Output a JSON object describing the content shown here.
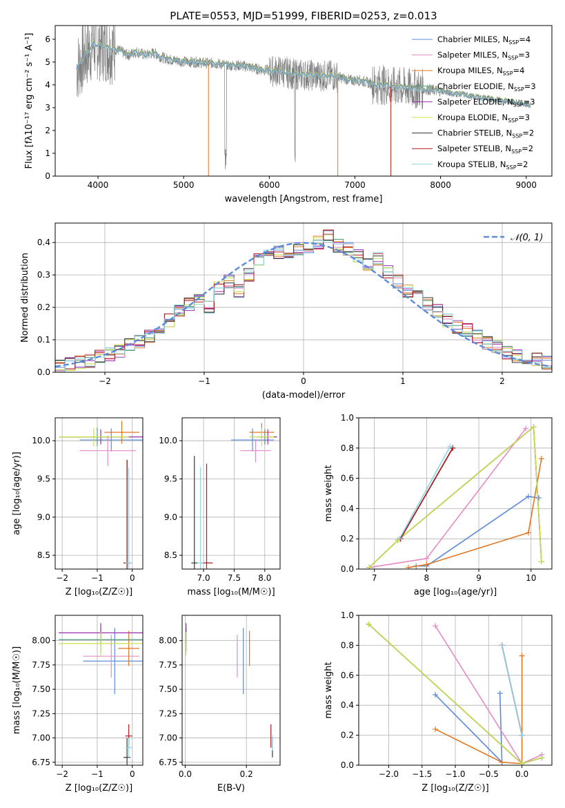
{
  "figure": {
    "title": "PLATE=0553, MJD=51999, FIBERID=0253, z=0.013"
  },
  "colors": {
    "chabrier_miles": "#5b8bd8",
    "salpeter_miles": "#e58ac4",
    "kroupa_miles": "#e0761f",
    "chabrier_elodie": "#4e9d78",
    "salpeter_elodie": "#9b2fb0",
    "kroupa_elodie": "#c9e04a",
    "chabrier_stelib": "#333333",
    "salpeter_stelib": "#b0181c",
    "kroupa_stelib": "#8fd3e2",
    "gaussian": "#5b8bd8",
    "data": "#808080"
  },
  "chart_data": [
    {
      "id": "spectrum",
      "type": "line",
      "title": "PLATE=0553, MJD=51999, FIBERID=0253, z=0.013",
      "xlabel": "wavelength [Angstrom, rest frame]",
      "ylabel": "Flux [fλ10⁻¹⁷ erg cm⁻² s⁻¹ A⁻¹]",
      "xlim": [
        3500,
        9300
      ],
      "ylim": [
        0,
        6.6
      ],
      "xticks": [
        4000,
        5000,
        6000,
        7000,
        8000,
        9000
      ],
      "yticks": [
        0,
        1,
        2,
        3,
        4,
        5,
        6
      ],
      "grid": false,
      "legend_position": "top-right",
      "model_x": [
        3750,
        3850,
        3950,
        4050,
        4150,
        4250,
        4350,
        4450,
        4550,
        4650,
        4750,
        4850,
        4950,
        5050,
        5150,
        5250,
        5350,
        5450,
        5550,
        5650,
        5750,
        5850,
        5950,
        6050,
        6150,
        6250,
        6350,
        6450,
        6550,
        6650,
        6750,
        6850,
        6950,
        7050,
        7150,
        7250,
        7350,
        7450,
        7550,
        7650,
        7750,
        7850,
        7950,
        8050,
        8150,
        8250,
        8350,
        8450,
        8550,
        8650,
        8750,
        8850,
        8950,
        9050
      ],
      "model_y": [
        4.7,
        5.3,
        5.8,
        5.7,
        5.6,
        5.5,
        5.3,
        5.45,
        5.3,
        5.4,
        5.2,
        5.1,
        5.05,
        5.0,
        5.0,
        4.95,
        4.95,
        4.9,
        4.85,
        4.85,
        4.8,
        4.7,
        4.65,
        4.6,
        4.6,
        4.5,
        4.45,
        4.45,
        4.4,
        4.4,
        4.4,
        4.3,
        4.2,
        4.2,
        4.1,
        4.0,
        4.0,
        3.9,
        3.9,
        3.85,
        3.8,
        3.8,
        3.75,
        3.7,
        3.6,
        3.6,
        3.5,
        3.45,
        3.4,
        3.35,
        3.3,
        3.25,
        3.2,
        3.1
      ],
      "series": [
        {
          "name": "Chabrier MILES, N",
          "sub": "SSP",
          "suffix": "=4",
          "key": "chabrier_miles"
        },
        {
          "name": "Salpeter MILES, N",
          "sub": "SSP",
          "suffix": "=3",
          "key": "salpeter_miles"
        },
        {
          "name": "Kroupa MILES, N",
          "sub": "SSP",
          "suffix": "=4",
          "key": "kroupa_miles"
        },
        {
          "name": "Chabrier ELODIE, N",
          "sub": "SSP",
          "suffix": "=3",
          "key": "chabrier_elodie"
        },
        {
          "name": "Salpeter ELODIE, N",
          "sub": "SSP",
          "suffix": "=3",
          "key": "salpeter_elodie"
        },
        {
          "name": "Kroupa ELODIE, N",
          "sub": "SSP",
          "suffix": "=3",
          "key": "kroupa_elodie"
        },
        {
          "name": "Chabrier STELIB, N",
          "sub": "SSP",
          "suffix": "=2",
          "key": "chabrier_stelib"
        },
        {
          "name": "Salpeter STELIB, N",
          "sub": "SSP",
          "suffix": "=2",
          "key": "salpeter_stelib"
        },
        {
          "name": "Kroupa STELIB, N",
          "sub": "SSP",
          "suffix": "=2",
          "key": "kroupa_stelib"
        }
      ]
    },
    {
      "id": "residuals",
      "type": "line",
      "xlabel": "(data-model)/error",
      "ylabel": "Normed distribution",
      "xlim": [
        -2.5,
        2.5
      ],
      "ylim": [
        0,
        0.46
      ],
      "xticks": [
        -2,
        -1,
        0,
        1,
        2
      ],
      "yticks": [
        0.0,
        0.1,
        0.2,
        0.3,
        0.4
      ],
      "grid": true,
      "legend": "𝒩(0, 1)",
      "legend_position": "top-right",
      "bins": [
        -2.5,
        -2.4,
        -2.3,
        -2.2,
        -2.1,
        -2.0,
        -1.9,
        -1.8,
        -1.7,
        -1.6,
        -1.5,
        -1.4,
        -1.3,
        -1.2,
        -1.1,
        -1.0,
        -0.9,
        -0.8,
        -0.7,
        -0.6,
        -0.5,
        -0.4,
        -0.3,
        -0.2,
        -0.1,
        0.0,
        0.1,
        0.2,
        0.3,
        0.4,
        0.5,
        0.6,
        0.7,
        0.8,
        0.9,
        1.0,
        1.1,
        1.2,
        1.3,
        1.4,
        1.5,
        1.6,
        1.7,
        1.8,
        1.9,
        2.0,
        2.1,
        2.2,
        2.3,
        2.4
      ],
      "hist_values": [
        0.02,
        0.025,
        0.03,
        0.035,
        0.05,
        0.055,
        0.065,
        0.085,
        0.095,
        0.11,
        0.14,
        0.16,
        0.19,
        0.21,
        0.22,
        0.2,
        0.26,
        0.28,
        0.25,
        0.3,
        0.35,
        0.38,
        0.37,
        0.36,
        0.38,
        0.36,
        0.4,
        0.42,
        0.39,
        0.38,
        0.36,
        0.33,
        0.35,
        0.31,
        0.28,
        0.25,
        0.24,
        0.21,
        0.19,
        0.16,
        0.14,
        0.13,
        0.11,
        0.09,
        0.08,
        0.06,
        0.05,
        0.04,
        0.04,
        0.03
      ]
    },
    {
      "id": "age_vs_Z",
      "type": "scatter",
      "xlabel": "Z [log₁₀(Z/Z☉)]",
      "ylabel": "age  [log₁₀(age/yr)]",
      "xlim": [
        -2.2,
        0.3
      ],
      "ylim": [
        8.32,
        10.3
      ],
      "xticks": [
        -2,
        -1,
        0
      ],
      "yticks": [
        8.5,
        9.0,
        9.5,
        10.0
      ],
      "grid": true,
      "points": [
        {
          "key": "chabrier_miles",
          "x": -0.6,
          "y": 10.01,
          "xerr": 0.9,
          "yerr": 0.15
        },
        {
          "key": "salpeter_miles",
          "x": -0.7,
          "y": 9.87,
          "xerr": 0.8,
          "yerr": 0.2
        },
        {
          "key": "kroupa_miles",
          "x": -0.3,
          "y": 10.11,
          "xerr": 0.5,
          "yerr": 0.15
        },
        {
          "key": "chabrier_elodie",
          "x": -1.0,
          "y": 10.05,
          "xerr": 1.0,
          "yerr": 0.12
        },
        {
          "key": "salpeter_elodie",
          "x": -0.9,
          "y": 10.05,
          "xerr": 1.2,
          "yerr": 0.1
        },
        {
          "key": "kroupa_elodie",
          "x": -1.1,
          "y": 10.05,
          "xerr": 1.0,
          "yerr": 0.12
        },
        {
          "key": "chabrier_stelib",
          "x": -0.15,
          "y": 8.4,
          "xerr": 0.1,
          "yerr": 1.35
        },
        {
          "key": "salpeter_stelib",
          "x": -0.15,
          "y": 8.4,
          "xerr": 0.1,
          "yerr": 1.35
        },
        {
          "key": "kroupa_stelib",
          "x": -0.1,
          "y": 8.4,
          "xerr": 0.1,
          "yerr": 1.25
        }
      ]
    },
    {
      "id": "age_vs_mass",
      "type": "scatter",
      "xlabel": "mass [log₁₀(M/M☉)]",
      "ylabel": "",
      "xlim": [
        6.65,
        8.25
      ],
      "ylim": [
        8.32,
        10.3
      ],
      "xticks": [
        7.0,
        7.5,
        8.0
      ],
      "yticks": [
        8.5,
        9.0,
        9.5,
        10.0
      ],
      "grid": true,
      "points": [
        {
          "key": "chabrier_miles",
          "x": 7.8,
          "y": 10.01,
          "xerr": 0.35,
          "yerr": 0.15
        },
        {
          "key": "salpeter_miles",
          "x": 7.85,
          "y": 9.87,
          "xerr": 0.25,
          "yerr": 0.15
        },
        {
          "key": "kroupa_miles",
          "x": 7.95,
          "y": 10.11,
          "xerr": 0.2,
          "yerr": 0.12
        },
        {
          "key": "chabrier_elodie",
          "x": 8.0,
          "y": 10.05,
          "xerr": 0.15,
          "yerr": 0.1
        },
        {
          "key": "salpeter_elodie",
          "x": 8.05,
          "y": 10.05,
          "xerr": 0.15,
          "yerr": 0.1
        },
        {
          "key": "kroupa_elodie",
          "x": 7.95,
          "y": 10.05,
          "xerr": 0.2,
          "yerr": 0.12
        },
        {
          "key": "chabrier_stelib",
          "x": 6.85,
          "y": 8.4,
          "xerr": 0.05,
          "yerr": 1.4
        },
        {
          "key": "salpeter_stelib",
          "x": 7.05,
          "y": 8.4,
          "xerr": 0.1,
          "yerr": 1.3
        },
        {
          "key": "kroupa_stelib",
          "x": 6.95,
          "y": 8.4,
          "xerr": 0.05,
          "yerr": 1.25
        }
      ]
    },
    {
      "id": "weight_vs_age",
      "type": "line",
      "xlabel": "age  [log₁₀(age/yr)]",
      "ylabel": "mass weight",
      "xlim": [
        6.7,
        10.4
      ],
      "ylim": [
        0,
        1.0
      ],
      "xticks": [
        7,
        8,
        9,
        10
      ],
      "yticks": [
        0.0,
        0.2,
        0.4,
        0.6,
        0.8,
        1.0
      ],
      "grid": true,
      "lines": [
        {
          "key": "chabrier_miles",
          "x": [
            7.8,
            8.0,
            9.95,
            10.15
          ],
          "y": [
            0.02,
            0.02,
            0.48,
            0.47
          ]
        },
        {
          "key": "salpeter_miles",
          "x": [
            6.9,
            8.0,
            9.9
          ],
          "y": [
            0.01,
            0.07,
            0.93
          ]
        },
        {
          "key": "kroupa_miles",
          "x": [
            7.65,
            8.0,
            9.95,
            10.2
          ],
          "y": [
            0.01,
            0.03,
            0.24,
            0.73
          ]
        },
        {
          "key": "chabrier_elodie",
          "x": [
            6.9,
            7.45,
            10.05,
            10.2
          ],
          "y": [
            0.01,
            0.19,
            0.94,
            0.05
          ]
        },
        {
          "key": "salpeter_elodie",
          "x": [
            6.9,
            7.45,
            10.05,
            10.2
          ],
          "y": [
            0.01,
            0.19,
            0.94,
            0.05
          ]
        },
        {
          "key": "kroupa_elodie",
          "x": [
            6.9,
            7.45,
            10.05,
            10.2
          ],
          "y": [
            0.01,
            0.19,
            0.94,
            0.05
          ]
        },
        {
          "key": "chabrier_stelib",
          "x": [
            7.5,
            8.5
          ],
          "y": [
            0.2,
            0.8
          ]
        },
        {
          "key": "salpeter_stelib",
          "x": [
            7.5,
            8.5
          ],
          "y": [
            0.2,
            0.8
          ]
        },
        {
          "key": "kroupa_stelib",
          "x": [
            7.48,
            8.45
          ],
          "y": [
            0.2,
            0.81
          ]
        }
      ]
    },
    {
      "id": "mass_vs_Z",
      "type": "scatter",
      "xlabel": "Z [log₁₀(Z/Z☉)]",
      "ylabel": "mass [log₁₀(M/M☉)]",
      "xlim": [
        -2.2,
        0.3
      ],
      "ylim": [
        6.72,
        8.26
      ],
      "xticks": [
        -2,
        -1,
        0
      ],
      "yticks": [
        6.75,
        7.0,
        7.25,
        7.5,
        7.75,
        8.0
      ],
      "grid": true,
      "points": [
        {
          "key": "chabrier_miles",
          "x": -0.5,
          "y": 7.79,
          "xerr": 0.9,
          "yerr": 0.34
        },
        {
          "key": "salpeter_miles",
          "x": -0.6,
          "y": 7.84,
          "xerr": 0.8,
          "yerr": 0.22
        },
        {
          "key": "kroupa_miles",
          "x": -0.1,
          "y": 7.92,
          "xerr": 0.3,
          "yerr": 0.18
        },
        {
          "key": "chabrier_elodie",
          "x": -0.9,
          "y": 8.01,
          "xerr": 1.2,
          "yerr": 0.12
        },
        {
          "key": "salpeter_elodie",
          "x": -0.9,
          "y": 8.08,
          "xerr": 1.2,
          "yerr": 0.1
        },
        {
          "key": "kroupa_elodie",
          "x": -0.9,
          "y": 7.97,
          "xerr": 1.2,
          "yerr": 0.12
        },
        {
          "key": "chabrier_stelib",
          "x": -0.15,
          "y": 6.8,
          "xerr": 0.1,
          "yerr": 0.2
        },
        {
          "key": "salpeter_stelib",
          "x": -0.1,
          "y": 7.02,
          "xerr": 0.1,
          "yerr": 0.12
        },
        {
          "key": "kroupa_stelib",
          "x": -0.1,
          "y": 6.9,
          "xerr": 0.1,
          "yerr": 0.1
        }
      ]
    },
    {
      "id": "mass_vs_ebv",
      "type": "scatter",
      "xlabel": "E(B-V)",
      "ylabel": "",
      "xlim": [
        -0.01,
        0.31
      ],
      "ylim": [
        6.72,
        8.26
      ],
      "xticks": [
        0.0,
        0.2
      ],
      "yticks": [
        6.75,
        7.0,
        7.25,
        7.5,
        7.75,
        8.0
      ],
      "grid": true,
      "points": [
        {
          "key": "chabrier_miles",
          "x": 0.19,
          "y": 7.79,
          "xerr": 0,
          "yerr": 0.34
        },
        {
          "key": "salpeter_miles",
          "x": 0.17,
          "y": 7.84,
          "xerr": 0,
          "yerr": 0.22
        },
        {
          "key": "kroupa_miles",
          "x": 0.21,
          "y": 7.92,
          "xerr": 0,
          "yerr": 0.18
        },
        {
          "key": "chabrier_elodie",
          "x": 0.003,
          "y": 8.01,
          "xerr": 0,
          "yerr": 0.12
        },
        {
          "key": "salpeter_elodie",
          "x": 0.003,
          "y": 8.08,
          "xerr": 0,
          "yerr": 0.1
        },
        {
          "key": "kroupa_elodie",
          "x": 0.003,
          "y": 7.97,
          "xerr": 0,
          "yerr": 0.12
        },
        {
          "key": "chabrier_stelib",
          "x": 0.285,
          "y": 6.9,
          "xerr": 0,
          "yerr": 0.1
        },
        {
          "key": "salpeter_stelib",
          "x": 0.28,
          "y": 7.02,
          "xerr": 0,
          "yerr": 0.12
        },
        {
          "key": "kroupa_stelib",
          "x": 0.285,
          "y": 6.95,
          "xerr": 0,
          "yerr": 0.08
        }
      ]
    },
    {
      "id": "weight_vs_Z",
      "type": "line",
      "xlabel": "Z [log₁₀(Z/Z☉)]",
      "ylabel": "mass weight",
      "xlim": [
        -2.45,
        0.45
      ],
      "ylim": [
        0,
        1.0
      ],
      "xticks": [
        -2.0,
        -1.5,
        -1.0,
        -0.5,
        0.0
      ],
      "yticks": [
        0.0,
        0.2,
        0.4,
        0.6,
        0.8,
        1.0
      ],
      "grid": true,
      "lines": [
        {
          "key": "chabrier_miles",
          "x": [
            -1.3,
            -0.3,
            -0.33
          ],
          "y": [
            0.47,
            0.02,
            0.48
          ]
        },
        {
          "key": "salpeter_miles",
          "x": [
            -1.3,
            0.0,
            0.3
          ],
          "y": [
            0.93,
            0.01,
            0.07
          ]
        },
        {
          "key": "kroupa_miles",
          "x": [
            -1.3,
            -0.3,
            0.0,
            0.0
          ],
          "y": [
            0.24,
            0.02,
            0.01,
            0.73
          ]
        },
        {
          "key": "chabrier_elodie",
          "x": [
            -2.3,
            0.0,
            0.3
          ],
          "y": [
            0.94,
            0.01,
            0.05
          ]
        },
        {
          "key": "salpeter_elodie",
          "x": [
            -2.3,
            0.0,
            0.3
          ],
          "y": [
            0.94,
            0.01,
            0.05
          ]
        },
        {
          "key": "kroupa_elodie",
          "x": [
            -2.3,
            0.0,
            0.3
          ],
          "y": [
            0.94,
            0.01,
            0.05
          ]
        },
        {
          "key": "chabrier_stelib",
          "x": [
            -0.3,
            0.0
          ],
          "y": [
            0.8,
            0.2
          ]
        },
        {
          "key": "salpeter_stelib",
          "x": [
            -0.3,
            0.0
          ],
          "y": [
            0.8,
            0.2
          ]
        },
        {
          "key": "kroupa_stelib",
          "x": [
            -0.3,
            0.0
          ],
          "y": [
            0.8,
            0.2
          ]
        }
      ]
    }
  ]
}
